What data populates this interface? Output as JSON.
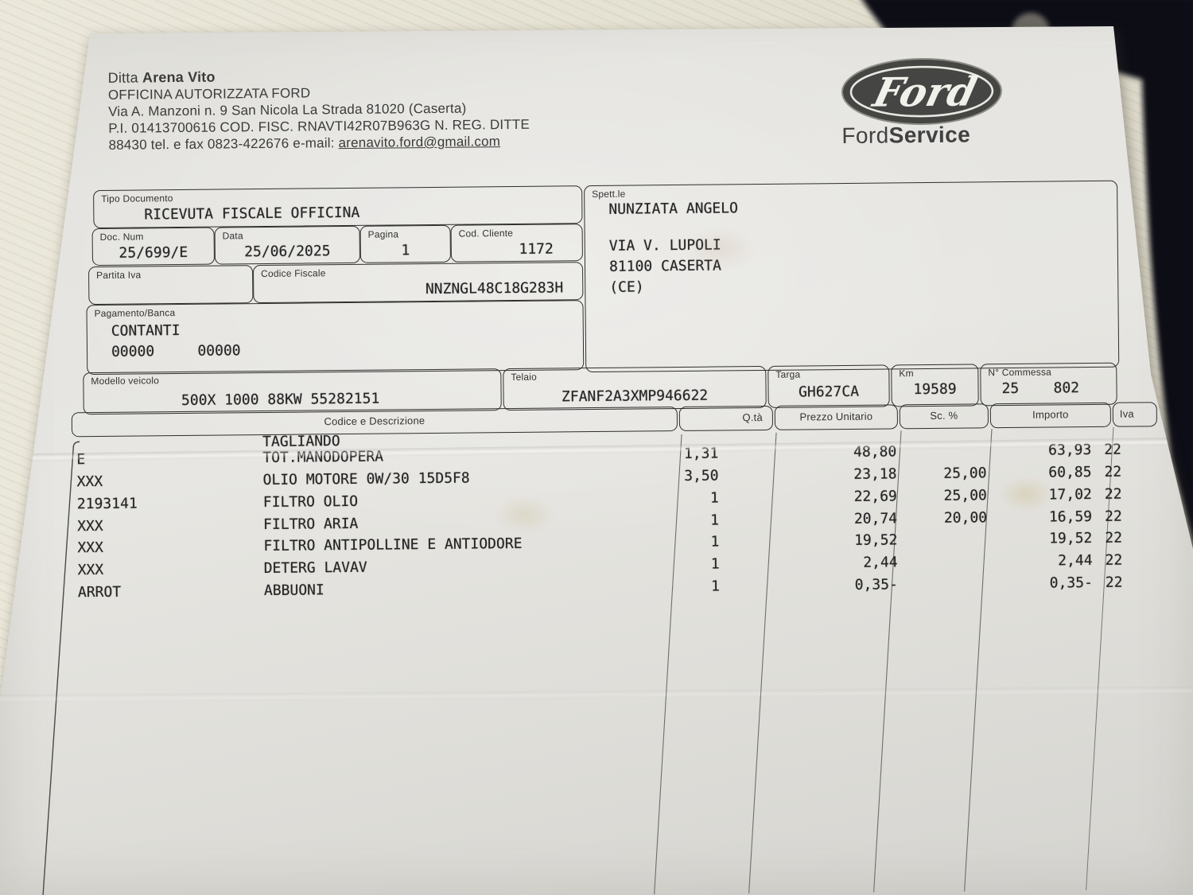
{
  "company": {
    "ditta_label": "Ditta",
    "name": "Arena Vito",
    "line2": "OFFICINA AUTORIZZATA FORD",
    "line3": "Via A. Manzoni n. 9 San Nicola La Strada 81020 (Caserta)",
    "line4": "P.I. 01413700616 COD. FISC. RNAVTI42R07B963G N. REG. DITTE",
    "contact_prefix": "88430 tel. e fax 0823-422676 e-mail: ",
    "email": "arenavito.ford@gmail.com"
  },
  "brand": {
    "oval_text": "Ford",
    "service_normal": "Ford",
    "service_bold": "Service"
  },
  "document": {
    "tipo_label": "Tipo Documento",
    "tipo_value": "RICEVUTA FISCALE OFFICINA",
    "doc_num_label": "Doc. Num",
    "doc_num": "25/699/E",
    "data_label": "Data",
    "data_value": "25/06/2025",
    "pagina_label": "Pagina",
    "pagina_value": "1",
    "cod_cliente_label": "Cod. Cliente",
    "cod_cliente_value": "1172",
    "partita_iva_label": "Partita Iva",
    "partita_iva_value": "",
    "codice_fiscale_label": "Codice Fiscale",
    "codice_fiscale_value": "NNZNGL48C18G283H",
    "pagamento_label": "Pagamento/Banca",
    "pagamento_value": "CONTANTI",
    "pagamento_codes": "00000     00000"
  },
  "customer": {
    "label": "Spett.le",
    "name": "NUNZIATA ANGELO",
    "address1": "VIA V. LUPOLI",
    "address2": "81100 CASERTA",
    "address3": "(CE)"
  },
  "vehicle": {
    "modello_label": "Modello veicolo",
    "modello": "500X 1000 88KW 55282151",
    "telaio_label": "Telaio",
    "telaio": "ZFANF2A3XMP946622",
    "targa_label": "Targa",
    "targa": "GH627CA",
    "km_label": "Km",
    "km": "19589",
    "commessa_label": "N° Commessa",
    "commessa": "25    802"
  },
  "table": {
    "headers": {
      "code_desc": "Codice e Descrizione",
      "qty": "Q.tà",
      "price": "Prezzo Unitario",
      "disc": "Sc. %",
      "amount": "Importo",
      "vat": "Iva"
    },
    "rows": [
      {
        "code": "",
        "desc": "TAGLIANDO",
        "qty": "",
        "price": "",
        "disc": "",
        "amount": "",
        "vat": ""
      },
      {
        "code": "E",
        "desc": "TOT.MANODOPERA",
        "qty": "1,31",
        "price": "48,80",
        "disc": "",
        "amount": "63,93",
        "vat": "22"
      },
      {
        "code": "XXX",
        "desc": "OLIO MOTORE 0W/30 15D5F8",
        "qty": "3,50",
        "price": "23,18",
        "disc": "25,00",
        "amount": "60,85",
        "vat": "22"
      },
      {
        "code": "2193141",
        "desc": "FILTRO OLIO",
        "qty": "1",
        "price": "22,69",
        "disc": "25,00",
        "amount": "17,02",
        "vat": "22"
      },
      {
        "code": "XXX",
        "desc": "FILTRO ARIA",
        "qty": "1",
        "price": "20,74",
        "disc": "20,00",
        "amount": "16,59",
        "vat": "22"
      },
      {
        "code": "XXX",
        "desc": "FILTRO ANTIPOLLINE E ANTIODORE",
        "qty": "1",
        "price": "19,52",
        "disc": "",
        "amount": "19,52",
        "vat": "22"
      },
      {
        "code": "XXX",
        "desc": "DETERG LAVAV",
        "qty": "1",
        "price": "2,44",
        "disc": "",
        "amount": "2,44",
        "vat": "22"
      },
      {
        "code": "ARROT",
        "desc": "ABBUONI",
        "qty": "1",
        "price": "0,35-",
        "disc": "",
        "amount": "0,35-",
        "vat": "22"
      }
    ]
  },
  "colors": {
    "ink": "#2e2e2e",
    "paper": "#e3e2de",
    "desk": "#e6e2d4"
  }
}
